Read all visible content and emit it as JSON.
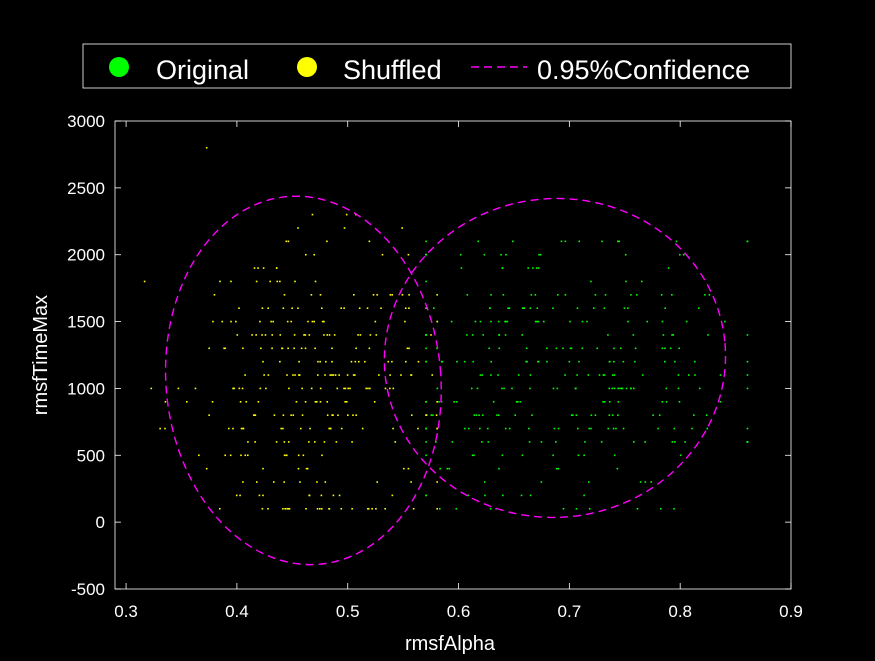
{
  "chart_data": {
    "type": "scatter",
    "title": "",
    "xlabel": "rmsfAlpha",
    "ylabel": "rmsfTimeMax",
    "xlim": [
      0.29,
      0.9
    ],
    "ylim": [
      -500,
      3000
    ],
    "xticks": [
      0.3,
      0.4,
      0.5,
      0.6,
      0.7,
      0.8,
      0.9
    ],
    "xtick_labels": [
      "0.3",
      "0.4",
      "0.5",
      "0.6",
      "0.7",
      "0.8",
      "0.9"
    ],
    "yticks": [
      -500,
      0,
      500,
      1000,
      1500,
      2000,
      2500,
      3000
    ],
    "ytick_labels": [
      "-500",
      "0",
      "500",
      "1000",
      "1500",
      "2000",
      "2500",
      "3000"
    ],
    "grid": false,
    "legend_position": "top",
    "background": "#000000",
    "axes_color": "#ffffff",
    "series": [
      {
        "name": "Original",
        "color": "#00ff00",
        "marker": "point",
        "cluster": {
          "center_x": 0.69,
          "center_y": 1150,
          "spread_x": 0.085,
          "spread_y": 550,
          "x_range": [
            0.57,
            0.86
          ],
          "y_range": [
            100,
            2100
          ],
          "count": 330,
          "seed": 11
        }
      },
      {
        "name": "Shuffled",
        "color": "#ffff00",
        "marker": "point",
        "cluster": {
          "center_x": 0.46,
          "center_y": 1050,
          "spread_x": 0.055,
          "spread_y": 560,
          "x_range": [
            0.33,
            0.58
          ],
          "y_range": [
            100,
            2300
          ],
          "count": 300,
          "seed": 29
        },
        "outliers": [
          {
            "x": 0.372,
            "y": 2800
          },
          {
            "x": 0.316,
            "y": 1800
          },
          {
            "x": 0.322,
            "y": 1000
          }
        ]
      },
      {
        "name": "0.95%Confidence",
        "color": "#ff00ff",
        "style": "dashed",
        "ellipses": [
          {
            "cx": 0.46,
            "cy": 1060,
            "rx": 0.124,
            "ry": 1380,
            "angle": -5
          },
          {
            "cx": 0.687,
            "cy": 1228,
            "rx": 0.154,
            "ry": 1192,
            "angle": -5
          }
        ]
      }
    ]
  }
}
